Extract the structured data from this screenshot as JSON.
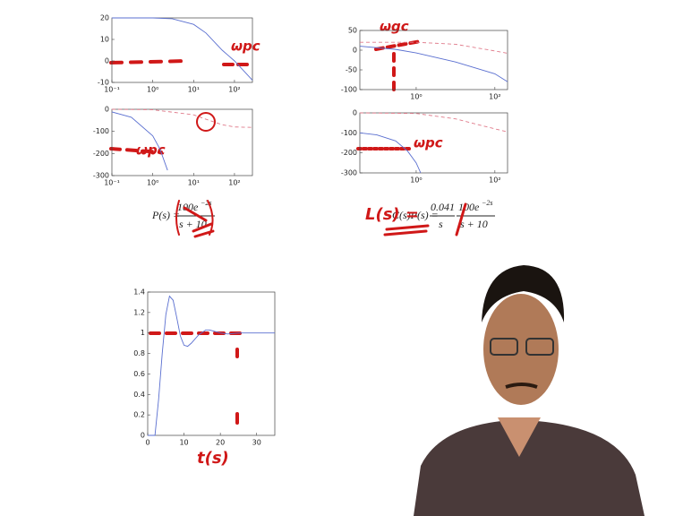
{
  "chart_data": [
    {
      "type": "line",
      "xscale": "log",
      "xlim": [
        0.1,
        275
      ],
      "ylim": [
        -10,
        20
      ],
      "xticks": [
        {
          "value": 0.1,
          "label": "10⁻¹"
        },
        {
          "value": 1,
          "label": "10⁰"
        },
        {
          "value": 10,
          "label": "10¹"
        },
        {
          "value": 100,
          "label": "10²"
        }
      ],
      "yticks": [
        -10,
        0,
        10,
        20
      ],
      "series": [
        {
          "color": "#5a6fd0",
          "style": "solid",
          "x": [
            0.1,
            1,
            3,
            10,
            20,
            50,
            100,
            275
          ],
          "values": [
            20,
            20,
            19.6,
            17,
            13,
            5,
            0,
            -9
          ]
        }
      ]
    },
    {
      "type": "line",
      "xscale": "log",
      "xlim": [
        0.1,
        275
      ],
      "ylim": [
        -300,
        0
      ],
      "xticks": [
        {
          "value": 0.1,
          "label": "10⁻¹"
        },
        {
          "value": 1,
          "label": "10⁰"
        },
        {
          "value": 10,
          "label": "10¹"
        },
        {
          "value": 100,
          "label": "10²"
        }
      ],
      "yticks": [
        -300,
        -200,
        -100,
        0
      ],
      "series": [
        {
          "color": "#5a6fd0",
          "style": "solid",
          "x": [
            0.1,
            0.3,
            1,
            1.5,
            2.3
          ],
          "values": [
            -12,
            -36,
            -120,
            -180,
            -276
          ]
        },
        {
          "color": "#e07a8a",
          "style": "dashed",
          "x": [
            0.1,
            1,
            10,
            20,
            50,
            100,
            275
          ],
          "values": [
            0,
            -2,
            -25,
            -45,
            -70,
            -80,
            -82
          ]
        }
      ]
    },
    {
      "type": "line",
      "xscale": "log",
      "xlim": [
        0.037,
        210
      ],
      "ylim": [
        -100,
        50
      ],
      "xticks": [
        {
          "value": 1,
          "label": "10⁰"
        },
        {
          "value": 100,
          "label": "10²"
        }
      ],
      "yticks": [
        -100,
        -50,
        0,
        50
      ],
      "series": [
        {
          "color": "#5a6fd0",
          "style": "solid",
          "x": [
            0.037,
            0.3,
            1,
            10,
            100,
            210
          ],
          "values": [
            10,
            2,
            -7,
            -30,
            -60,
            -80
          ]
        },
        {
          "color": "#e07a8a",
          "style": "dashed",
          "x": [
            0.037,
            1,
            10,
            100,
            210
          ],
          "values": [
            20,
            20,
            15,
            -2,
            -8
          ]
        }
      ]
    },
    {
      "type": "line",
      "xscale": "log",
      "xlim": [
        0.037,
        210
      ],
      "ylim": [
        -300,
        0
      ],
      "xticks": [
        {
          "value": 1,
          "label": "10⁰"
        },
        {
          "value": 100,
          "label": "10²"
        }
      ],
      "yticks": [
        -300,
        -200,
        -100,
        0
      ],
      "series": [
        {
          "color": "#5a6fd0",
          "style": "solid",
          "x": [
            0.037,
            0.1,
            0.3,
            0.6,
            1,
            1.3
          ],
          "values": [
            -100,
            -110,
            -140,
            -190,
            -250,
            -300
          ]
        },
        {
          "color": "#e07a8a",
          "style": "dashed",
          "x": [
            0.037,
            1,
            10,
            100,
            210
          ],
          "values": [
            0,
            -3,
            -30,
            -80,
            -95
          ]
        }
      ]
    },
    {
      "type": "line",
      "xscale": "linear",
      "xlim": [
        0,
        35
      ],
      "ylim": [
        0,
        1.4
      ],
      "xticks": [
        0,
        10,
        20,
        30
      ],
      "yticks": [
        0,
        0.2,
        0.4,
        0.6,
        0.8,
        1,
        1.2,
        1.4
      ],
      "series": [
        {
          "color": "#5a6fd0",
          "style": "solid",
          "x": [
            0,
            2,
            3,
            4,
            5,
            6,
            7,
            8,
            9,
            10,
            11,
            12,
            14,
            16,
            17,
            18,
            20,
            22,
            25,
            30,
            35
          ],
          "values": [
            0,
            0,
            0.35,
            0.8,
            1.18,
            1.36,
            1.32,
            1.15,
            0.97,
            0.88,
            0.87,
            0.9,
            0.98,
            1.03,
            1.03,
            1.02,
            1,
            0.99,
            1,
            1,
            1
          ]
        }
      ]
    }
  ],
  "formulas": {
    "plant_lhs": "P(s) =",
    "plant_num": "100e",
    "plant_exp": "−2s",
    "plant_den": "s + 10",
    "loop_lhs": "C(s)P(s) =",
    "loop_num1": "0.041",
    "loop_den1": "s",
    "loop_num2": "100e",
    "loop_exp2": "−2s",
    "loop_den2": "s + 10"
  },
  "annotations": {
    "wpc_mag": "ωpc",
    "wpc_phase": "ωpc",
    "wgc": "ωgc",
    "wpc_loop": "ωpc",
    "loop_label": "L(s) =",
    "time_label": "t(s)"
  }
}
